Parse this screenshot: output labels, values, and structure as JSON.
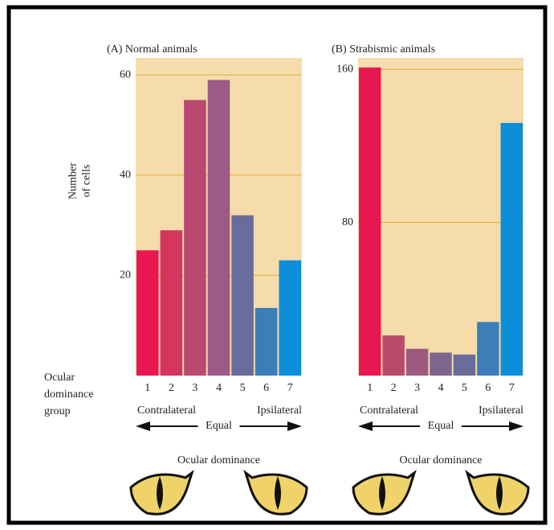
{
  "chart_data": [
    {
      "type": "bar",
      "title": "(A) Normal animals",
      "ylabel": [
        "Number",
        "of cells"
      ],
      "categories": [
        "1",
        "2",
        "3",
        "4",
        "5",
        "6",
        "7"
      ],
      "values": [
        25,
        29,
        55,
        59,
        32,
        13.5,
        23
      ],
      "colors": [
        "#e8174f",
        "#d3365f",
        "#b84a72",
        "#9c5a85",
        "#6a6c9b",
        "#3d7db8",
        "#0a8fd8"
      ],
      "ylim": [
        0,
        63.4
      ],
      "yticks": [
        20,
        40,
        60
      ],
      "grid": true,
      "scale_labels": {
        "left": "Contralateral",
        "middle": "Equal",
        "right": "Ipsilateral"
      },
      "xlabel": "Ocular dominance"
    },
    {
      "type": "bar",
      "title": "(B) Strabismic animals",
      "categories": [
        "1",
        "2",
        "3",
        "4",
        "5",
        "6",
        "7"
      ],
      "values": [
        161,
        21,
        14,
        12,
        11,
        28,
        132
      ],
      "colors": [
        "#e8174f",
        "#b84a6a",
        "#9c5a80",
        "#7e6590",
        "#6a6c9b",
        "#3d7db8",
        "#0a8fd8"
      ],
      "ylim": [
        0,
        166
      ],
      "yticks": [
        80,
        160
      ],
      "grid": true,
      "scale_labels": {
        "left": "Contralateral",
        "middle": "Equal",
        "right": "Ipsilateral"
      },
      "xlabel": "Ocular dominance"
    }
  ],
  "row_label": [
    "Ocular",
    "dominance",
    "group"
  ]
}
